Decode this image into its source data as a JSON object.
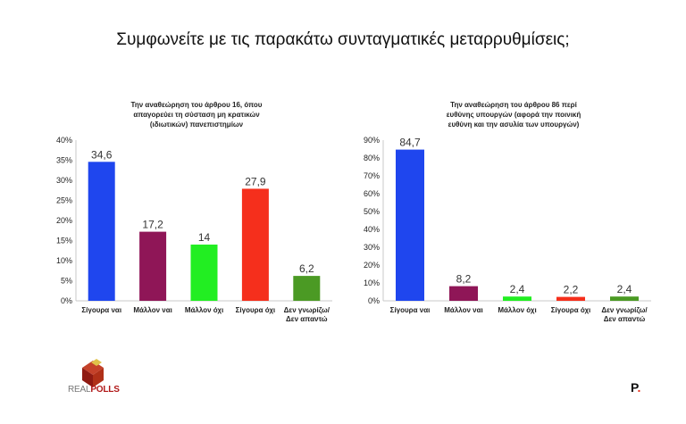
{
  "page": {
    "title": "Συμφωνείτε με τις παρακάτω συνταγματικές μεταρρυθμίσεις;"
  },
  "logos": {
    "left_real": "REAL",
    "left_polls": "POLLS",
    "right_mark": "P",
    "right_dot": "."
  },
  "colors": {
    "blue": "#1f46ee",
    "maroon": "#8f1657",
    "green": "#22ee22",
    "red": "#f52f1c",
    "olive": "#4b9a24"
  },
  "chart_data": [
    {
      "type": "bar",
      "title": [
        "Την αναθεώρηση του άρθρου 16, όπου",
        "απαγορεύει τη σύσταση μη κρατικών",
        "(ιδιωτικών) πανεπιστημίων"
      ],
      "categories": [
        [
          "Σίγουρα ναι"
        ],
        [
          "Μάλλον ναι"
        ],
        [
          "Μάλλον όχι"
        ],
        [
          "Σίγουρα όχι"
        ],
        [
          "Δεν γνωρίζω/",
          "Δεν απαντώ"
        ]
      ],
      "values": [
        34.6,
        17.2,
        14,
        27.9,
        6.2
      ],
      "value_labels": [
        "34,6",
        "17,2",
        "14",
        "27,9",
        "6,2"
      ],
      "colors": [
        "#1f46ee",
        "#8f1657",
        "#22ee22",
        "#f52f1c",
        "#4b9a24"
      ],
      "yticks": [
        "0%",
        "5%",
        "10%",
        "15%",
        "20%",
        "25%",
        "30%",
        "35%",
        "40%"
      ],
      "ylim": [
        0,
        40
      ],
      "grid": false
    },
    {
      "type": "bar",
      "title": [
        "Την αναθεώρηση του άρθρου 86 περί",
        "ευθύνης υπουργών (αφορά την ποινική",
        "ευθύνη και την ασυλία των υπουργών)"
      ],
      "categories": [
        [
          "Σίγουρα ναι"
        ],
        [
          "Μάλλον ναι"
        ],
        [
          "Μάλλον όχι"
        ],
        [
          "Σίγουρα όχι"
        ],
        [
          "Δεν γνωρίζω/",
          "Δεν απαντώ"
        ]
      ],
      "values": [
        84.7,
        8.2,
        2.4,
        2.2,
        2.4
      ],
      "value_labels": [
        "84,7",
        "8,2",
        "2,4",
        "2,2",
        "2,4"
      ],
      "colors": [
        "#1f46ee",
        "#8f1657",
        "#22ee22",
        "#f52f1c",
        "#4b9a24"
      ],
      "yticks": [
        "0%",
        "10%",
        "20%",
        "30%",
        "40%",
        "50%",
        "60%",
        "70%",
        "80%",
        "90%"
      ],
      "ylim": [
        0,
        90
      ],
      "grid": false
    }
  ]
}
